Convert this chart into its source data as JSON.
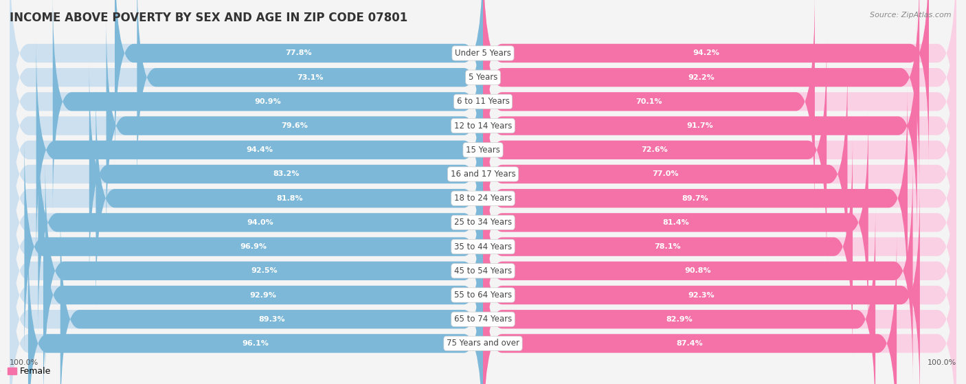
{
  "title": "INCOME ABOVE POVERTY BY SEX AND AGE IN ZIP CODE 07801",
  "source": "Source: ZipAtlas.com",
  "categories": [
    "Under 5 Years",
    "5 Years",
    "6 to 11 Years",
    "12 to 14 Years",
    "15 Years",
    "16 and 17 Years",
    "18 to 24 Years",
    "25 to 34 Years",
    "35 to 44 Years",
    "45 to 54 Years",
    "55 to 64 Years",
    "65 to 74 Years",
    "75 Years and over"
  ],
  "male_values": [
    77.8,
    73.1,
    90.9,
    79.6,
    94.4,
    83.2,
    81.8,
    94.0,
    96.9,
    92.5,
    92.9,
    89.3,
    96.1
  ],
  "female_values": [
    94.2,
    92.2,
    70.1,
    91.7,
    72.6,
    77.0,
    89.7,
    81.4,
    78.1,
    90.8,
    92.3,
    82.9,
    87.4
  ],
  "male_color": "#7db8d8",
  "male_light_color": "#cce0ef",
  "female_color": "#f472a8",
  "female_light_color": "#fad0e4",
  "background_color": "#f4f4f4",
  "title_fontsize": 12,
  "label_fontsize": 8.5,
  "value_fontsize": 8,
  "legend_fontsize": 9,
  "source_fontsize": 8,
  "x_max": 100.0
}
